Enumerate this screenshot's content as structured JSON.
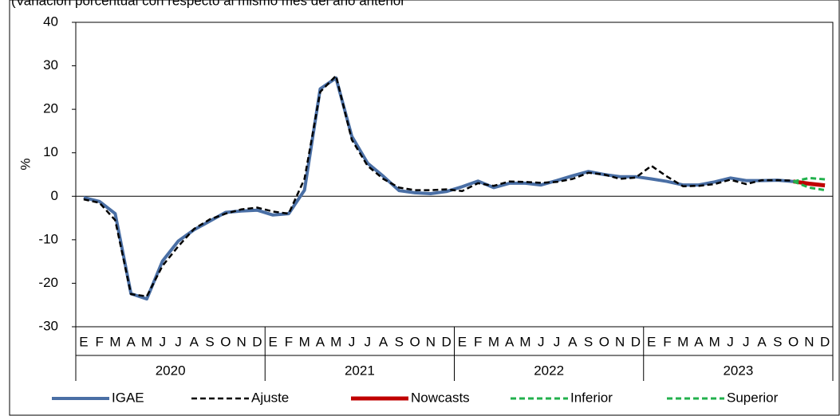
{
  "chart_data": {
    "type": "line",
    "title": "(Variación porcentual con respecto al mismo mes del año anterior",
    "y_label": "%",
    "categories": [
      "E",
      "F",
      "M",
      "A",
      "M",
      "J",
      "J",
      "A",
      "S",
      "O",
      "N",
      "D",
      "E",
      "F",
      "M",
      "A",
      "M",
      "J",
      "J",
      "A",
      "S",
      "O",
      "N",
      "D",
      "E",
      "F",
      "M",
      "A",
      "M",
      "J",
      "J",
      "A",
      "S",
      "O",
      "N",
      "D",
      "E",
      "F",
      "M",
      "A",
      "M",
      "J",
      "J",
      "A",
      "S",
      "O",
      "N",
      "D"
    ],
    "groups": [
      "2020",
      "2021",
      "2022",
      "2023"
    ],
    "ylim": [
      -30,
      40
    ],
    "yticks": [
      -30,
      -20,
      -10,
      0,
      10,
      20,
      30,
      40
    ],
    "series": [
      {
        "name": "IGAE",
        "color": "#4a6fa5",
        "style": "solid",
        "width": 4,
        "values": [
          -0.3,
          -1.2,
          -4.0,
          -22.4,
          -23.6,
          -14.9,
          -10.3,
          -7.7,
          -5.7,
          -3.7,
          -3.4,
          -3.2,
          -4.3,
          -4.0,
          1.4,
          24.7,
          27.2,
          13.8,
          7.6,
          4.6,
          1.3,
          0.8,
          0.6,
          1.1,
          2.2,
          3.5,
          2.0,
          3.0,
          3.0,
          2.6,
          3.6,
          4.7,
          5.7,
          5.0,
          4.5,
          4.5,
          4.0,
          3.4,
          2.6,
          2.6,
          3.3,
          4.2,
          3.6,
          3.6,
          3.7,
          3.4,
          null,
          null
        ]
      },
      {
        "name": "Ajuste",
        "color": "#000000",
        "style": "dashed",
        "width": 2.5,
        "values": [
          -0.7,
          -1.5,
          -5.5,
          -22.5,
          -23.0,
          -16.0,
          -11.5,
          -7.5,
          -5.3,
          -4.0,
          -3.0,
          -2.6,
          -3.5,
          -4.0,
          4.0,
          24.0,
          27.7,
          13.0,
          7.0,
          4.0,
          2.0,
          1.4,
          1.4,
          1.6,
          1.2,
          3.0,
          2.4,
          3.4,
          3.3,
          3.1,
          3.3,
          4.0,
          5.4,
          5.0,
          4.0,
          4.3,
          7.0,
          4.5,
          2.3,
          2.4,
          2.8,
          3.8,
          2.8,
          3.7,
          3.7,
          3.6,
          null,
          null
        ]
      },
      {
        "name": "Nowcasts",
        "color": "#c00000",
        "style": "solid",
        "width": 5,
        "values": [
          null,
          null,
          null,
          null,
          null,
          null,
          null,
          null,
          null,
          null,
          null,
          null,
          null,
          null,
          null,
          null,
          null,
          null,
          null,
          null,
          null,
          null,
          null,
          null,
          null,
          null,
          null,
          null,
          null,
          null,
          null,
          null,
          null,
          null,
          null,
          null,
          null,
          null,
          null,
          null,
          null,
          null,
          null,
          null,
          null,
          3.4,
          2.9,
          2.5
        ]
      },
      {
        "name": "Inferior",
        "color": "#22b14c",
        "style": "dashed",
        "width": 3,
        "values": [
          null,
          null,
          null,
          null,
          null,
          null,
          null,
          null,
          null,
          null,
          null,
          null,
          null,
          null,
          null,
          null,
          null,
          null,
          null,
          null,
          null,
          null,
          null,
          null,
          null,
          null,
          null,
          null,
          null,
          null,
          null,
          null,
          null,
          null,
          null,
          null,
          null,
          null,
          null,
          null,
          null,
          null,
          null,
          null,
          null,
          3.4,
          2.0,
          1.4
        ]
      },
      {
        "name": "Superior",
        "color": "#22b14c",
        "style": "dashed",
        "width": 3,
        "values": [
          null,
          null,
          null,
          null,
          null,
          null,
          null,
          null,
          null,
          null,
          null,
          null,
          null,
          null,
          null,
          null,
          null,
          null,
          null,
          null,
          null,
          null,
          null,
          null,
          null,
          null,
          null,
          null,
          null,
          null,
          null,
          null,
          null,
          null,
          null,
          null,
          null,
          null,
          null,
          null,
          null,
          null,
          null,
          null,
          null,
          3.4,
          4.2,
          3.9
        ]
      }
    ]
  }
}
